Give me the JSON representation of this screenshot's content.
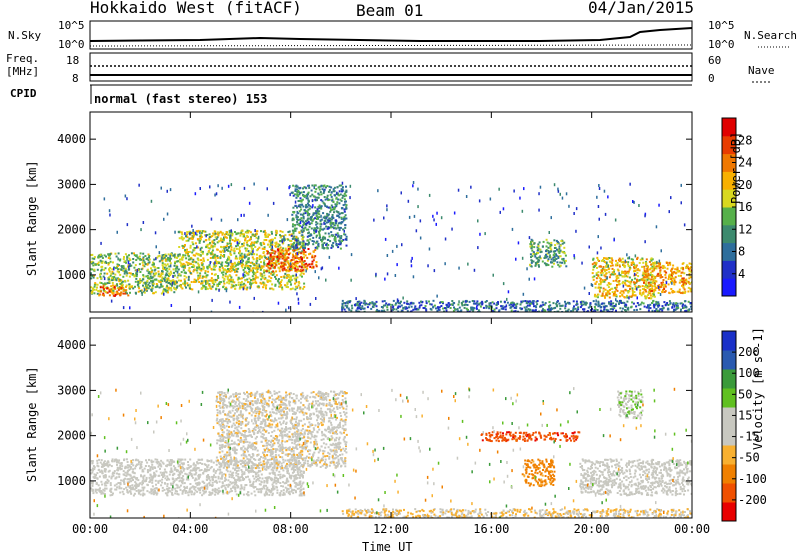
{
  "header": {
    "radar": "Hokkaido West (fitACF)",
    "beam": "Beam 01",
    "date": "04/Jan/2015"
  },
  "summary": {
    "nsky_label": "N.Sky",
    "nsky_ticks": [
      "10^5",
      "10^0"
    ],
    "nsearch_label": "N.Search",
    "nsearch_ticks": [
      "10^5",
      "10^0"
    ],
    "freq_label_1": "Freq.",
    "freq_label_2": "[MHz]",
    "freq_ticks": [
      "18",
      "8"
    ],
    "nave_label": "Nave",
    "nave_ticks": [
      "60",
      "0"
    ],
    "cpid_label": "CPID",
    "cpid_value": "normal (fast stereo) 153"
  },
  "colors": {
    "power": [
      "#1a1aff",
      "#2030c8",
      "#2e6e9c",
      "#3c8a6e",
      "#56b04a",
      "#d8d820",
      "#f8b000",
      "#f07800",
      "#e83c00",
      "#e00000"
    ],
    "velocity": [
      "#e80000",
      "#f05000",
      "#f08000",
      "#f8b030",
      "#c8c8c0",
      "#c8c8c0",
      "#60c020",
      "#3a9a3a",
      "#2a5ab0",
      "#1a30c8"
    ]
  },
  "chart_data": [
    {
      "type": "heatmap",
      "title": "",
      "xlabel": "Time UT",
      "ylabel": "Slant Range [km]",
      "x_ticks": [
        "00:00",
        "04:00",
        "08:00",
        "12:00",
        "16:00",
        "20:00",
        "00:00"
      ],
      "x_range": [
        0,
        24
      ],
      "ylim": [
        180,
        4600
      ],
      "y_ticks": [
        1000,
        2000,
        3000,
        4000
      ],
      "colorbar": {
        "label": "Power [dB]",
        "ticks": [
          4,
          8,
          12,
          16,
          20,
          24,
          28
        ],
        "range": [
          0,
          30
        ]
      },
      "regions": [
        {
          "t0": 0.0,
          "t1": 3.5,
          "r0": 600,
          "r1": 1500,
          "value": 14
        },
        {
          "t0": 0.3,
          "t1": 1.5,
          "r0": 550,
          "r1": 800,
          "value": 24
        },
        {
          "t0": 3.5,
          "t1": 8.5,
          "r0": 700,
          "r1": 2000,
          "value": 16
        },
        {
          "t0": 7.0,
          "t1": 9.0,
          "r0": 1100,
          "r1": 1600,
          "value": 24
        },
        {
          "t0": 8.0,
          "t1": 10.2,
          "r0": 1600,
          "r1": 3000,
          "value": 10
        },
        {
          "t0": 17.5,
          "t1": 19.0,
          "r0": 1200,
          "r1": 1800,
          "value": 12
        },
        {
          "t0": 20.0,
          "t1": 22.5,
          "r0": 500,
          "r1": 1400,
          "value": 18
        },
        {
          "t0": 22.0,
          "t1": 24.0,
          "r0": 600,
          "r1": 1300,
          "value": 20
        },
        {
          "t0": 10.0,
          "t1": 24.0,
          "r0": 200,
          "r1": 450,
          "value": 8
        }
      ]
    },
    {
      "type": "heatmap",
      "title": "",
      "xlabel": "Time UT",
      "ylabel": "Slant Range [km]",
      "x_ticks": [
        "00:00",
        "04:00",
        "08:00",
        "12:00",
        "16:00",
        "20:00",
        "00:00"
      ],
      "x_range": [
        0,
        24
      ],
      "ylim": [
        180,
        4600
      ],
      "y_ticks": [
        1000,
        2000,
        3000,
        4000
      ],
      "colorbar": {
        "label": "Velocity [m s^-1]",
        "ticks": [
          "-200",
          "-100",
          "-50",
          "-15",
          "15",
          "50",
          "100",
          "200"
        ],
        "range": [
          -250,
          250
        ]
      },
      "regions": [
        {
          "t0": 0.0,
          "t1": 8.5,
          "r0": 700,
          "r1": 1500,
          "value": 0
        },
        {
          "t0": 5.0,
          "t1": 10.2,
          "r0": 1300,
          "r1": 3000,
          "value": -30
        },
        {
          "t0": 17.2,
          "t1": 18.5,
          "r0": 900,
          "r1": 1500,
          "value": -120
        },
        {
          "t0": 15.5,
          "t1": 19.5,
          "r0": 1900,
          "r1": 2100,
          "value": -180
        },
        {
          "t0": 19.5,
          "t1": 24.0,
          "r0": 700,
          "r1": 1500,
          "value": 0
        },
        {
          "t0": 21.0,
          "t1": 22.0,
          "r0": 2400,
          "r1": 3000,
          "value": 40
        },
        {
          "t0": 10.0,
          "t1": 24.0,
          "r0": 200,
          "r1": 400,
          "value": -50
        }
      ]
    }
  ]
}
